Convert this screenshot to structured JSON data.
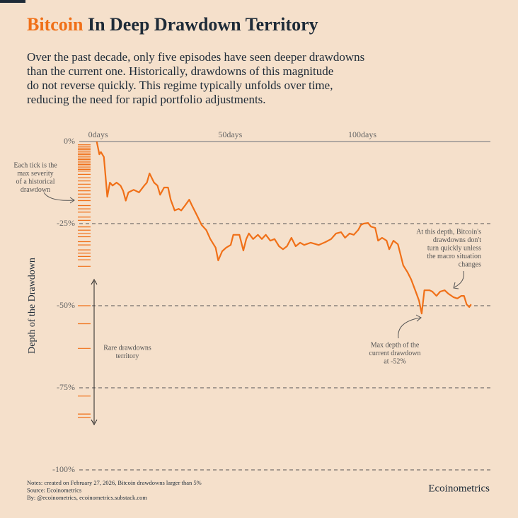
{
  "chart_data": {
    "type": "line",
    "title_highlight": "Bitcoin",
    "title": "In Deep Drawdown Territory",
    "subtitle": [
      "Over the past decade, only five episodes have seen deeper drawdowns",
      "than the current one. Historically, drawdowns of this magnitude",
      "do not reverse quickly. This regime typically unfolds over time,",
      "reducing the need for rapid portfolio adjustments."
    ],
    "y_label": "Depth of the Drawdown",
    "xlim": [
      -5,
      149
    ],
    "xticks": [
      {
        "value": 0,
        "label": "0days"
      },
      {
        "value": 50,
        "label": "50days"
      },
      {
        "value": 100,
        "label": "100days"
      }
    ],
    "ylim": [
      -100,
      0
    ],
    "yticks": [
      {
        "value": 0,
        "label": "0%"
      },
      {
        "value": -25,
        "label": "-25%"
      },
      {
        "value": -50,
        "label": "-50%"
      },
      {
        "value": -75,
        "label": "-75%"
      },
      {
        "value": -100,
        "label": "-100%"
      }
    ],
    "grid": true,
    "color": "#f07018",
    "x": [
      0,
      1,
      1.6,
      2.7,
      4,
      5,
      6,
      7.5,
      9,
      10,
      11,
      12,
      14,
      16,
      18,
      19,
      20,
      21.7,
      23,
      24,
      25.5,
      27,
      28,
      29.5,
      31,
      32,
      33.5,
      35,
      36,
      38,
      39.7,
      41.5,
      43,
      45,
      46,
      47.5,
      49,
      50.7,
      51.7,
      54,
      55.5,
      56.6,
      57.6,
      59.2,
      61,
      62.5,
      64,
      65.7,
      67.3,
      69,
      70.5,
      72,
      73.7,
      75.3,
      77,
      78.5,
      81,
      84,
      86.6,
      88.7,
      90.6,
      92.5,
      94,
      95.7,
      97.3,
      99,
      100,
      101,
      102.7,
      103.8,
      105.4,
      106.5,
      108,
      109.7,
      110.7,
      112.3,
      114,
      115,
      116,
      117.7,
      119,
      121,
      122,
      123,
      124,
      126,
      127,
      128.6,
      130,
      131.7,
      133,
      135,
      136.5,
      138,
      139,
      140,
      141,
      141.7
    ],
    "values": [
      0,
      -3.9,
      -3.2,
      -4.7,
      -16.8,
      -12.5,
      -13.4,
      -12.5,
      -13.4,
      -15,
      -18,
      -15.5,
      -14.7,
      -15.5,
      -13.4,
      -12.5,
      -9.7,
      -12.5,
      -13.4,
      -16.2,
      -14,
      -14,
      -17.7,
      -21,
      -20.5,
      -21,
      -19.4,
      -17.7,
      -19.4,
      -22.6,
      -25.4,
      -27,
      -29.7,
      -32.3,
      -36.2,
      -33.4,
      -32.3,
      -31.5,
      -28.4,
      -28.4,
      -33.2,
      -29.7,
      -28,
      -29.7,
      -28.4,
      -29.7,
      -28.4,
      -30.2,
      -29.7,
      -31.9,
      -32.8,
      -31.9,
      -29.3,
      -31.9,
      -30.8,
      -31.5,
      -30.8,
      -31.5,
      -30.6,
      -29.7,
      -28,
      -27.6,
      -29.3,
      -28,
      -28.4,
      -26.9,
      -25.4,
      -25,
      -24.8,
      -25.9,
      -26.3,
      -30.2,
      -29.3,
      -30.2,
      -32.8,
      -30.2,
      -31.3,
      -34.5,
      -37.7,
      -39.9,
      -42,
      -46.3,
      -48.5,
      -52.4,
      -45.3,
      -45.3,
      -45.7,
      -47,
      -45.7,
      -45.3,
      -46.3,
      -47.4,
      -47.8,
      -47,
      -47,
      -49.6,
      -50.4,
      -49.6
    ],
    "historical_drawdowns": {
      "color": "#f07018",
      "values": [
        -1,
        -1.5,
        -2,
        -2.5,
        -3,
        -3.5,
        -4,
        -4.5,
        -5,
        -5.5,
        -6,
        -6.5,
        -7,
        -7.5,
        -8,
        -8.5,
        -9,
        -10,
        -11,
        -12,
        -13,
        -14,
        -15,
        -16,
        -17,
        -18,
        -19.5,
        -20.5,
        -21.5,
        -23,
        -24,
        -26,
        -27,
        -28,
        -29,
        -30.5,
        -31.5,
        -33,
        -34,
        -35,
        -36,
        -38,
        -50,
        -55.5,
        -63,
        -77.5,
        -83,
        -84
      ]
    },
    "annotations": [
      {
        "lines": [
          "Each tick is the",
          "max severity",
          "of a historical",
          "drawdown"
        ]
      },
      {
        "lines": [
          "Rare drawdowns",
          "territory"
        ]
      },
      {
        "lines": [
          "Max depth of the",
          "current drawdown",
          "at -52%"
        ]
      },
      {
        "lines": [
          "At this depth, Bitcoin's",
          "drawdowns don't",
          "turn quickly unless",
          "the macro situation",
          "changes"
        ]
      }
    ],
    "notes": [
      "Notes: created on February 27, 2026, Bitcoin drawdowns larger than 5%",
      "Source: Ecoinometrics",
      "By: @ecoinometrics, ecoinometrics.substack.com"
    ],
    "brand": "Ecoinometrics"
  }
}
